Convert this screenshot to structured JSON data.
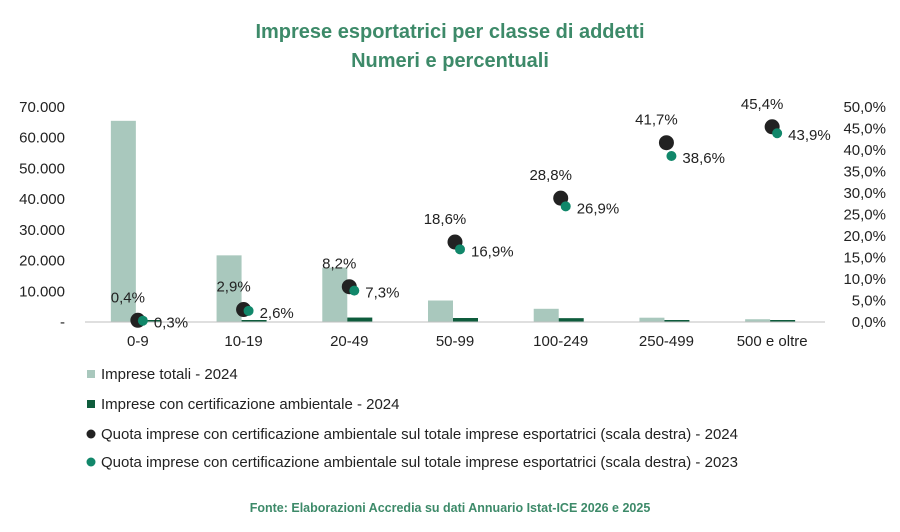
{
  "colors": {
    "title": "#3d8a69",
    "bar_totali": "#a9c8bd",
    "bar_cert": "#0e5c3c",
    "dot_2024": "#222222",
    "dot_2023": "#11876a",
    "source": "#3d8a69"
  },
  "chart_data": {
    "type": "bar",
    "title": "Imprese esportatrici per classe di addetti",
    "subtitle": "Numeri e percentuali",
    "categories": [
      "0-9",
      "10-19",
      "20-49",
      "50-99",
      "100-249",
      "250-499",
      "500 e oltre"
    ],
    "y_left": {
      "ylim": [
        0,
        70000
      ],
      "ticks": [
        0,
        10000,
        20000,
        30000,
        40000,
        50000,
        60000,
        70000
      ],
      "tick_labels": [
        "-",
        "10.000",
        "20.000",
        "30.000",
        "40.000",
        "50.000",
        "60.000",
        "70.000"
      ]
    },
    "y_right": {
      "ylim": [
        0,
        50
      ],
      "ticks": [
        0,
        5,
        10,
        15,
        20,
        25,
        30,
        35,
        40,
        45,
        50
      ],
      "tick_labels": [
        "0,0%",
        "5,0%",
        "10,0%",
        "15,0%",
        "20,0%",
        "25,0%",
        "30,0%",
        "35,0%",
        "40,0%",
        "45,0%",
        "50,0%"
      ]
    },
    "series": [
      {
        "name": "Imprese totali - 2024",
        "type": "bar",
        "axis": "left",
        "values": [
          65500,
          21700,
          17700,
          7000,
          4300,
          1400,
          900
        ]
      },
      {
        "name": "Imprese con certificazione ambientale - 2024",
        "type": "bar",
        "axis": "left",
        "values": [
          200,
          600,
          1450,
          1300,
          1250,
          580,
          410
        ]
      },
      {
        "name": "Quota imprese con certificazione ambientale sul totale imprese esportatrici (scala destra) - 2024",
        "type": "scatter",
        "axis": "right",
        "values": [
          0.4,
          2.9,
          8.2,
          18.6,
          28.8,
          41.7,
          45.4
        ],
        "labels": [
          "0,4%",
          "2,9%",
          "8,2%",
          "18,6%",
          "28,8%",
          "41,7%",
          "45,4%"
        ]
      },
      {
        "name": "Quota imprese con certificazione ambientale sul totale imprese esportatrici (scala destra) - 2023",
        "type": "scatter",
        "axis": "right",
        "values": [
          0.3,
          2.6,
          7.3,
          16.9,
          26.9,
          38.6,
          43.9
        ],
        "labels": [
          "0,3%",
          "2,6%",
          "7,3%",
          "16,9%",
          "26,9%",
          "38,6%",
          "43,9%"
        ]
      }
    ],
    "legend_position": "bottom-left",
    "grid": false,
    "source": "Fonte: Elaborazioni Accredia su dati Annuario Istat-ICE 2026 e 2025"
  }
}
